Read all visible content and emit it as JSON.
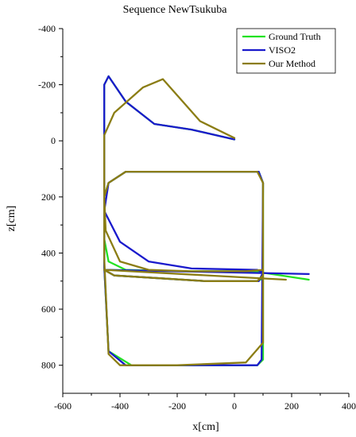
{
  "chart_data": {
    "type": "line",
    "title": "Sequence NewTsukuba",
    "xlabel": "x[cm]",
    "ylabel": "z[cm]",
    "xlim": [
      -600,
      400
    ],
    "ylim": [
      -400,
      900
    ],
    "y_inverted": true,
    "xticks": [
      -600,
      -400,
      -200,
      0,
      200,
      400
    ],
    "yticks": [
      -400,
      -200,
      0,
      200,
      400,
      600,
      800
    ],
    "legend_position": "top-right",
    "series": [
      {
        "name": "Ground Truth",
        "color": "#22e222",
        "x": [
          0,
          -150,
          -280,
          -380,
          -440,
          -455,
          -455,
          -440,
          -360,
          -150,
          80,
          100,
          100,
          85,
          -100,
          -380,
          -440,
          -455,
          -455,
          -440,
          -380,
          -200,
          70,
          100,
          100,
          80,
          -100,
          -420,
          -455,
          100,
          260
        ],
        "y": [
          -5,
          -40,
          -60,
          -140,
          -230,
          -200,
          450,
          750,
          800,
          800,
          800,
          780,
          150,
          110,
          110,
          110,
          150,
          200,
          350,
          430,
          460,
          465,
          465,
          470,
          490,
          500,
          500,
          480,
          460,
          470,
          495
        ]
      },
      {
        "name": "VISO2",
        "color": "#1a1acc",
        "x": [
          0,
          -150,
          -280,
          -380,
          -440,
          -455,
          -455,
          -440,
          -380,
          -150,
          80,
          95,
          100,
          85,
          -100,
          -380,
          -440,
          -455,
          -400,
          -300,
          -150,
          80,
          100,
          95,
          85,
          -100,
          -420,
          -455,
          260
        ],
        "y": [
          -5,
          -40,
          -60,
          -140,
          -230,
          -200,
          450,
          750,
          800,
          800,
          800,
          780,
          150,
          110,
          110,
          110,
          150,
          250,
          360,
          430,
          455,
          460,
          470,
          480,
          500,
          500,
          480,
          460,
          475
        ]
      },
      {
        "name": "Our Method",
        "color": "#8b7d14",
        "x": [
          0,
          -120,
          -250,
          -320,
          -420,
          -455,
          -455,
          -440,
          -400,
          -200,
          40,
          100,
          100,
          80,
          -100,
          -380,
          -440,
          -455,
          -450,
          -400,
          -300,
          -150,
          40,
          100,
          100,
          80,
          -100,
          -420,
          -455,
          180
        ],
        "y": [
          -10,
          -70,
          -220,
          -190,
          -100,
          -20,
          420,
          760,
          800,
          800,
          790,
          720,
          150,
          110,
          110,
          110,
          150,
          200,
          320,
          430,
          460,
          465,
          465,
          460,
          480,
          500,
          500,
          480,
          460,
          495
        ]
      }
    ]
  }
}
